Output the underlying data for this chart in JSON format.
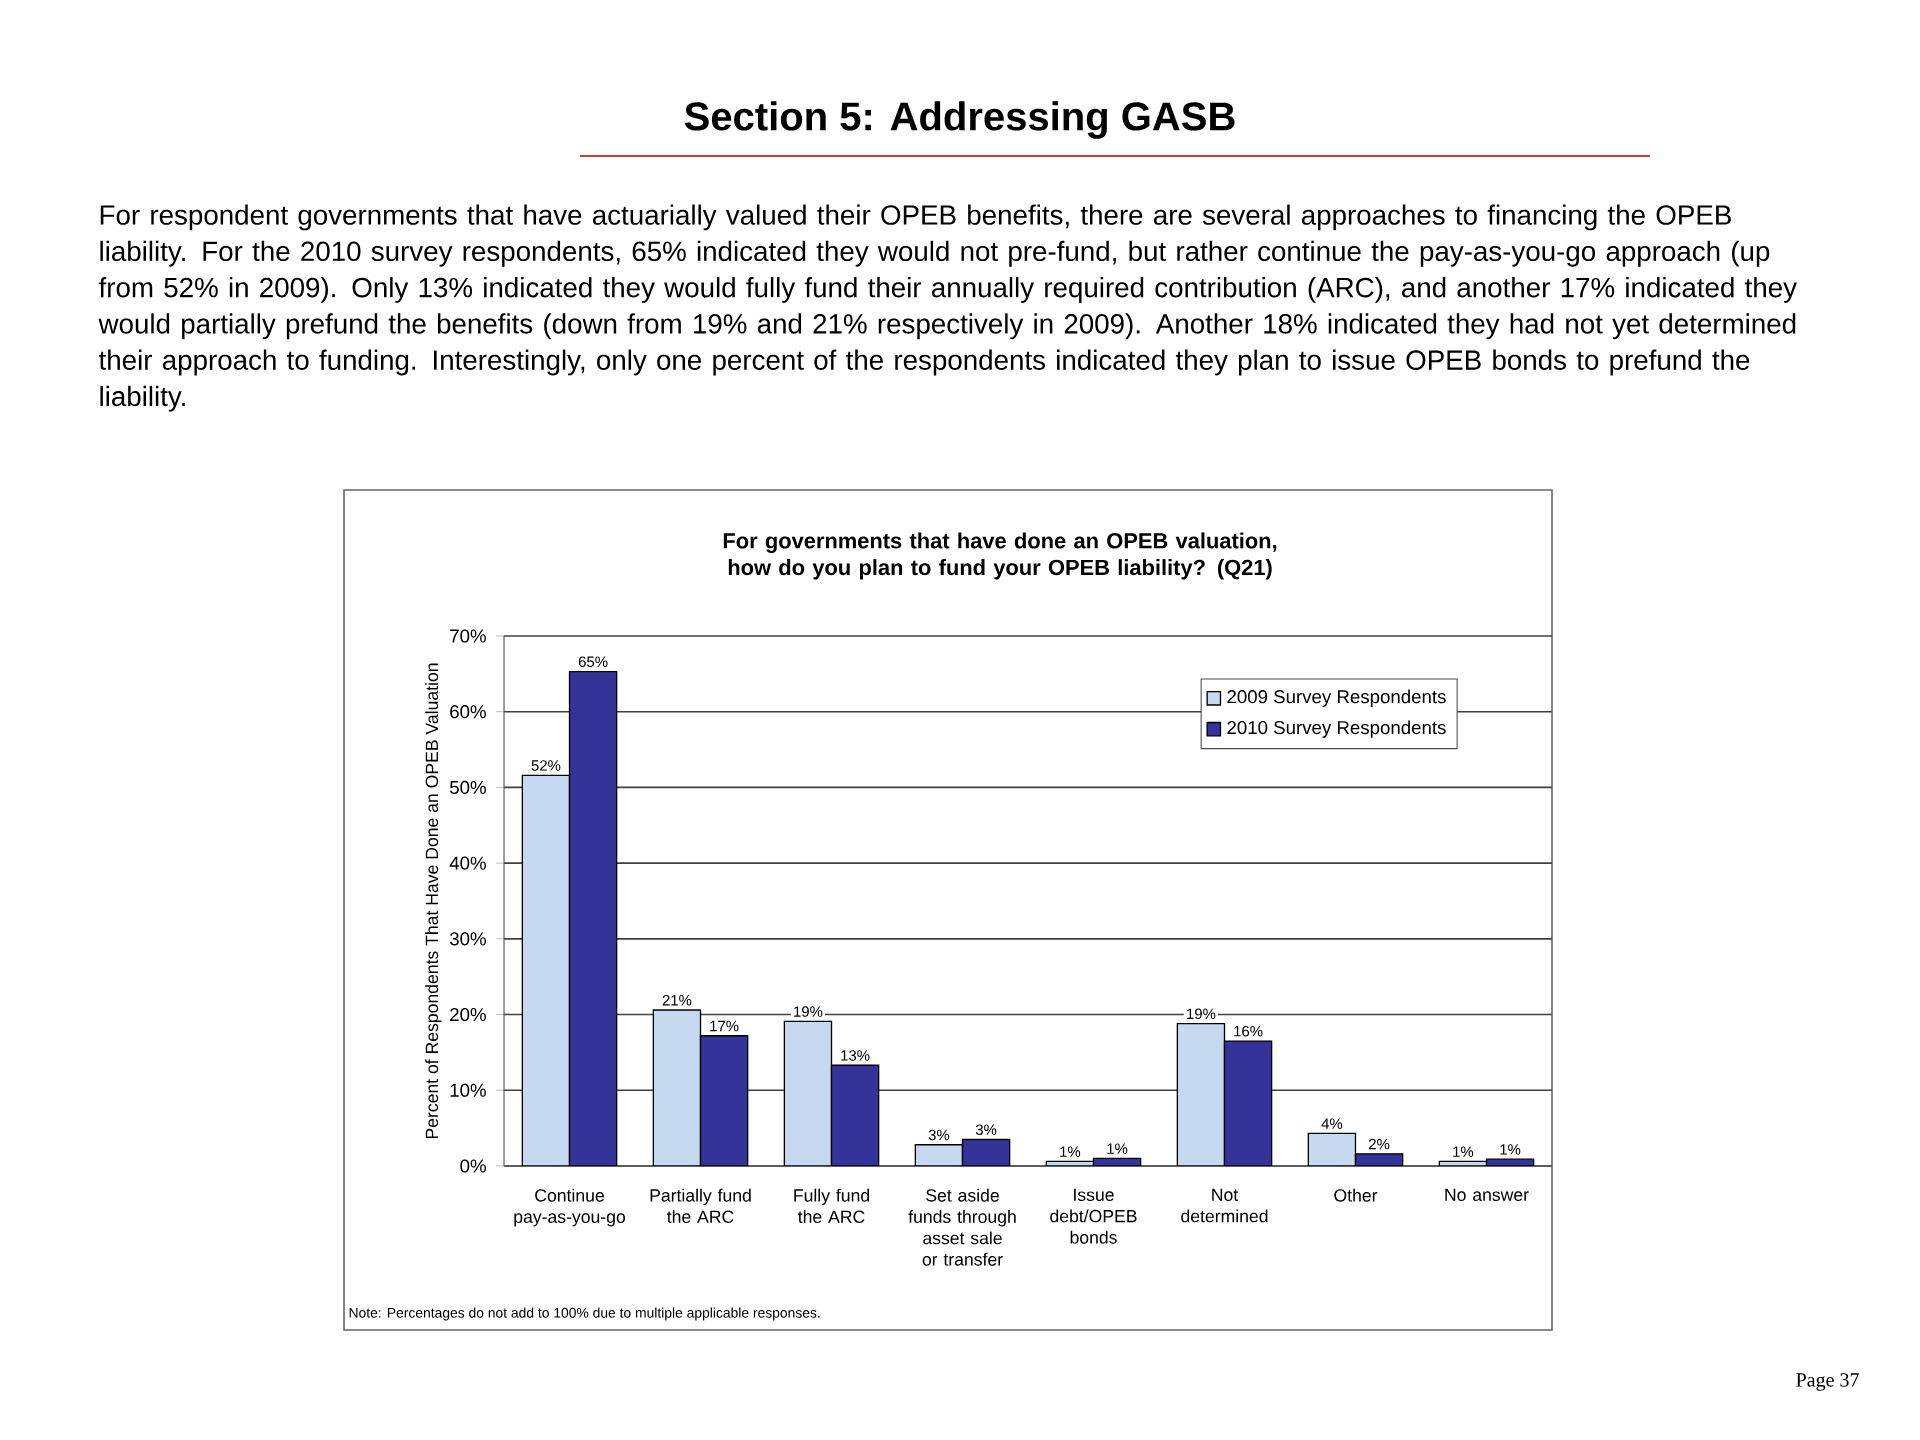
{
  "chart_data": {
    "type": "bar",
    "title": "For governments that have done an OPEB valuation, how do you plan to fund your OPEB liability? (Q21)",
    "ylabel": "Percent of Respondents That Have Done an OPEB Valuation",
    "categories": [
      "Continue pay-as-you-go",
      "Partially fund the ARC",
      "Fully fund the ARC",
      "Set aside funds through asset sale or transfer",
      "Issue debt/OPEB bonds",
      "Not determined",
      "Other",
      "No answer"
    ],
    "series": [
      {
        "name": "2009 Survey Respondents",
        "color": "#c6d9f1",
        "values": [
          51.6,
          20.6,
          19.1,
          2.8,
          0.6,
          18.8,
          4.3,
          0.6
        ],
        "value_labels": [
          "52%",
          "21%",
          "19%",
          "3%",
          "1%",
          "19%",
          "4%",
          "1%"
        ]
      },
      {
        "name": "2010 Survey Respondents",
        "color": "#333399",
        "values": [
          65.3,
          17.2,
          13.3,
          3.5,
          1.0,
          16.5,
          1.6,
          0.9
        ],
        "value_labels": [
          "65%",
          "17%",
          "13%",
          "3%",
          "1%",
          "16%",
          "2%",
          "1%"
        ]
      }
    ],
    "ylim": [
      0,
      70
    ],
    "yticks": [
      {
        "value": 0,
        "label": "0%"
      },
      {
        "value": 10,
        "label": "10%"
      },
      {
        "value": 20,
        "label": "20%"
      },
      {
        "value": 30,
        "label": "30%"
      },
      {
        "value": 40,
        "label": "40%"
      },
      {
        "value": 50,
        "label": "50%"
      },
      {
        "value": 60,
        "label": "60%"
      },
      {
        "value": 70,
        "label": "70%"
      }
    ],
    "grid": "y",
    "legend": "top right",
    "annotations": [
      "Section 5: Addressing GASB",
      "For respondent governments that have actuarially valued their OPEB benefits, there are several approaches to financing the OPEB liability.  For the 2010 survey respondents, 65% indicated they would not pre-fund, but rather continue the pay-as-you-go approach (up from 52% in 2009).  Only 13% indicated they would fully fund their annually required contribution (ARC), and another 17% indicated they would partially prefund the benefits (down from 19% and 21% respectively in 2009).  Another 18% indicated they had not yet determined their approach to funding.  Interestingly, only one percent of the respondents indicated they plan to issue OPEB bonds to prefund the liability.",
      "Note: Percentages do not add to 100% due to multiple applicable responses.",
      "Page 37"
    ]
  }
}
